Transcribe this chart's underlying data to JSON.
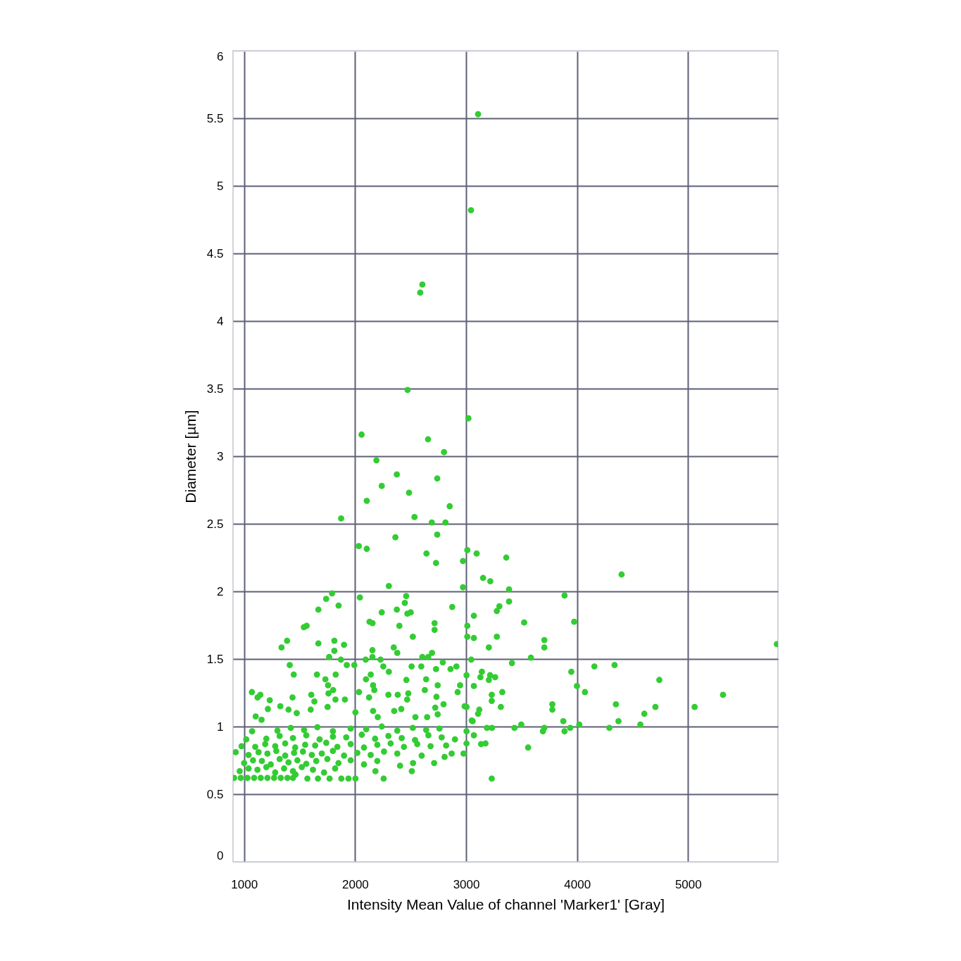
{
  "chart_data": {
    "type": "scatter",
    "xlabel": "Intensity Mean Value of channel 'Marker1' [Gray]",
    "ylabel": "Diameter [µm]",
    "color": "#33cc33",
    "marker": "circle",
    "grid": true,
    "xlim": [
      900,
      5810
    ],
    "xticks": [
      1000,
      2000,
      3000,
      4000,
      5000
    ],
    "ylim": [
      0,
      6
    ],
    "yticks": [
      0,
      0.5,
      1,
      1.5,
      2,
      2.5,
      3,
      3.5,
      4,
      4.5,
      5,
      5.5,
      6
    ],
    "x": [
      3108,
      3044,
      2606,
      2587,
      2473,
      3021,
      2058,
      2657,
      2801,
      2192,
      2376,
      2740,
      2240,
      2486,
      2105,
      2852,
      1874,
      2535,
      2691,
      2814,
      2740,
      2363,
      2033,
      2105,
      3011,
      3095,
      2643,
      3362,
      2972,
      2729,
      3153,
      3218,
      4401,
      3387,
      2304,
      2972,
      3887,
      3387,
      3300,
      3277,
      1792,
      1739,
      2043,
      2460,
      2448,
      1851,
      1669,
      2875,
      2240,
      2376,
      2471,
      2501,
      3070,
      3974,
      3523,
      2130,
      2157,
      2399,
      1538,
      1563,
      2716,
      2716,
      3011,
      2520,
      3011,
      3070,
      3277,
      3705,
      3705,
      3205,
      1387,
      1337,
      1669,
      1813,
      1900,
      1813,
      1766,
      2156,
      2156,
      2348,
      2380,
      2606,
      2659,
      2693,
      3584,
      3046,
      3413,
      5800,
      4156,
      4338,
      3948,
      1872,
      1925,
      1993,
      1411,
      1447,
      2095,
      2229,
      2254,
      2304,
      2509,
      2596,
      2729,
      2790,
      2860,
      2913,
      3142,
      3129,
      3216,
      3262,
      3205,
      3004,
      1656,
      1825,
      2141,
      2098,
      2462,
      2640,
      3070,
      3326,
      3999,
      4071,
      4741,
      3231,
      3231,
      5315,
      3004,
      3119,
      3108,
      3313,
      3777,
      3777,
      4350,
      4706,
      5059,
      4606,
      4373,
      4570,
      3059,
      3876,
      4020,
      3436,
      3497,
      3188,
      3233,
      3705,
      3692,
      3887,
      3938,
      4291,
      3070,
      3004,
      3175,
      3004,
      3559,
      3231,
      1070,
      1146,
      1121,
      1231,
      1436,
      1605,
      1633,
      1732,
      1756,
      1802,
      1760,
      1823,
      1908,
      2035,
      2162,
      2173,
      2300,
      2384,
      2479,
      2469,
      2628,
      2744,
      2733,
      2946,
      2924,
      2126,
      1214,
      1326,
      1104,
      1157,
      1400,
      1474,
      1600,
      1752,
      2003,
      2162,
      2204,
      2352,
      2416,
      2543,
      2649,
      2722,
      2744,
      2797,
      2987,
      3051,
      3135,
      2977,
      2870,
      2806,
      2712,
      2522,
      2511,
      2405,
      2257,
      2183,
      2003,
      1940,
      1876,
      1770,
      1665,
      1570,
      1463,
      1019,
      1072,
      977,
      924,
      910,
      970,
      1030,
      1090,
      1150,
      1210,
      1270,
      1330,
      1390,
      1440,
      960,
      1040,
      1120,
      1200,
      1280,
      1360,
      1440,
      1520,
      1620,
      1720,
      1820,
      1000,
      1080,
      1160,
      1240,
      1320,
      1400,
      1480,
      1560,
      1650,
      1750,
      1850,
      1960,
      2080,
      2200,
      1040,
      1130,
      1210,
      1290,
      1370,
      1450,
      1530,
      1610,
      1700,
      1800,
      1900,
      2020,
      2140,
      2260,
      2380,
      2600,
      1100,
      1190,
      1280,
      1370,
      1460,
      1550,
      1640,
      1740,
      1840,
      1960,
      2080,
      2200,
      2320,
      2440,
      2560,
      2680,
      2820,
      1200,
      1320,
      1440,
      1560,
      1680,
      1800,
      1920,
      2060,
      2180,
      2300,
      2420,
      2540,
      2660,
      2780,
      2900,
      1300,
      1420,
      1540,
      1660,
      1800,
      1960,
      2100,
      2240,
      2380,
      2520,
      2640,
      2760
    ],
    "values": [
      5.53,
      4.82,
      4.27,
      4.21,
      3.49,
      3.28,
      3.16,
      3.125,
      3.03,
      2.97,
      2.865,
      2.835,
      2.78,
      2.73,
      2.67,
      2.63,
      2.54,
      2.55,
      2.51,
      2.51,
      2.42,
      2.4,
      2.335,
      2.315,
      2.305,
      2.28,
      2.28,
      2.25,
      2.225,
      2.21,
      2.1,
      2.075,
      2.125,
      2.015,
      2.04,
      2.03,
      1.97,
      1.925,
      1.89,
      1.855,
      1.985,
      1.945,
      1.955,
      1.965,
      1.915,
      1.895,
      1.865,
      1.885,
      1.845,
      1.865,
      1.835,
      1.845,
      1.82,
      1.775,
      1.77,
      1.775,
      1.765,
      1.745,
      1.735,
      1.745,
      1.765,
      1.715,
      1.745,
      1.665,
      1.665,
      1.655,
      1.665,
      1.64,
      1.585,
      1.585,
      1.635,
      1.585,
      1.615,
      1.635,
      1.605,
      1.56,
      1.515,
      1.565,
      1.515,
      1.585,
      1.545,
      1.515,
      1.515,
      1.545,
      1.51,
      1.495,
      1.47,
      1.61,
      1.445,
      1.455,
      1.405,
      1.495,
      1.455,
      1.455,
      1.455,
      1.385,
      1.495,
      1.495,
      1.445,
      1.405,
      1.445,
      1.445,
      1.425,
      1.475,
      1.425,
      1.445,
      1.405,
      1.365,
      1.38,
      1.365,
      1.345,
      1.38,
      1.385,
      1.385,
      1.385,
      1.35,
      1.345,
      1.35,
      1.3,
      1.255,
      1.3,
      1.255,
      1.345,
      1.235,
      1.19,
      1.235,
      1.145,
      1.125,
      1.095,
      1.145,
      1.165,
      1.125,
      1.165,
      1.145,
      1.145,
      1.095,
      1.04,
      1.015,
      1.04,
      1.04,
      1.015,
      0.99,
      1.015,
      0.99,
      0.99,
      0.99,
      0.965,
      0.965,
      0.99,
      0.99,
      0.935,
      0.965,
      0.875,
      0.875,
      0.845,
      0.615,
      1.255,
      1.235,
      1.215,
      1.195,
      1.215,
      1.235,
      1.185,
      1.35,
      1.305,
      1.27,
      1.245,
      1.2,
      1.2,
      1.255,
      1.305,
      1.27,
      1.235,
      1.235,
      1.245,
      1.2,
      1.27,
      1.305,
      1.22,
      1.305,
      1.255,
      1.215,
      1.13,
      1.15,
      1.075,
      1.05,
      1.125,
      1.1,
      1.125,
      1.145,
      1.105,
      1.115,
      1.07,
      1.115,
      1.13,
      1.07,
      1.07,
      1.14,
      1.09,
      1.165,
      1.15,
      1.045,
      0.87,
      0.8,
      0.8,
      0.775,
      0.73,
      0.73,
      0.67,
      0.71,
      0.615,
      0.67,
      0.615,
      0.615,
      0.615,
      0.615,
      0.615,
      0.615,
      0.645,
      0.905,
      0.965,
      0.855,
      0.81,
      0.62,
      0.62,
      0.62,
      0.62,
      0.62,
      0.62,
      0.62,
      0.62,
      0.62,
      0.62,
      0.67,
      0.69,
      0.68,
      0.7,
      0.66,
      0.69,
      0.67,
      0.7,
      0.68,
      0.66,
      0.69,
      0.73,
      0.75,
      0.745,
      0.72,
      0.76,
      0.735,
      0.75,
      0.725,
      0.745,
      0.76,
      0.73,
      0.75,
      0.72,
      0.745,
      0.79,
      0.81,
      0.8,
      0.82,
      0.785,
      0.805,
      0.815,
      0.79,
      0.8,
      0.82,
      0.785,
      0.805,
      0.79,
      0.815,
      0.8,
      0.785,
      0.85,
      0.87,
      0.855,
      0.875,
      0.845,
      0.865,
      0.86,
      0.88,
      0.85,
      0.87,
      0.845,
      0.865,
      0.875,
      0.85,
      0.87,
      0.855,
      0.86,
      0.91,
      0.93,
      0.915,
      0.935,
      0.905,
      0.925,
      0.92,
      0.94,
      0.91,
      0.93,
      0.915,
      0.9,
      0.935,
      0.92,
      0.905,
      0.97,
      0.99,
      0.975,
      0.995,
      0.965,
      0.985,
      0.98,
      1.0,
      0.97,
      0.99,
      0.975,
      0.985
    ]
  }
}
